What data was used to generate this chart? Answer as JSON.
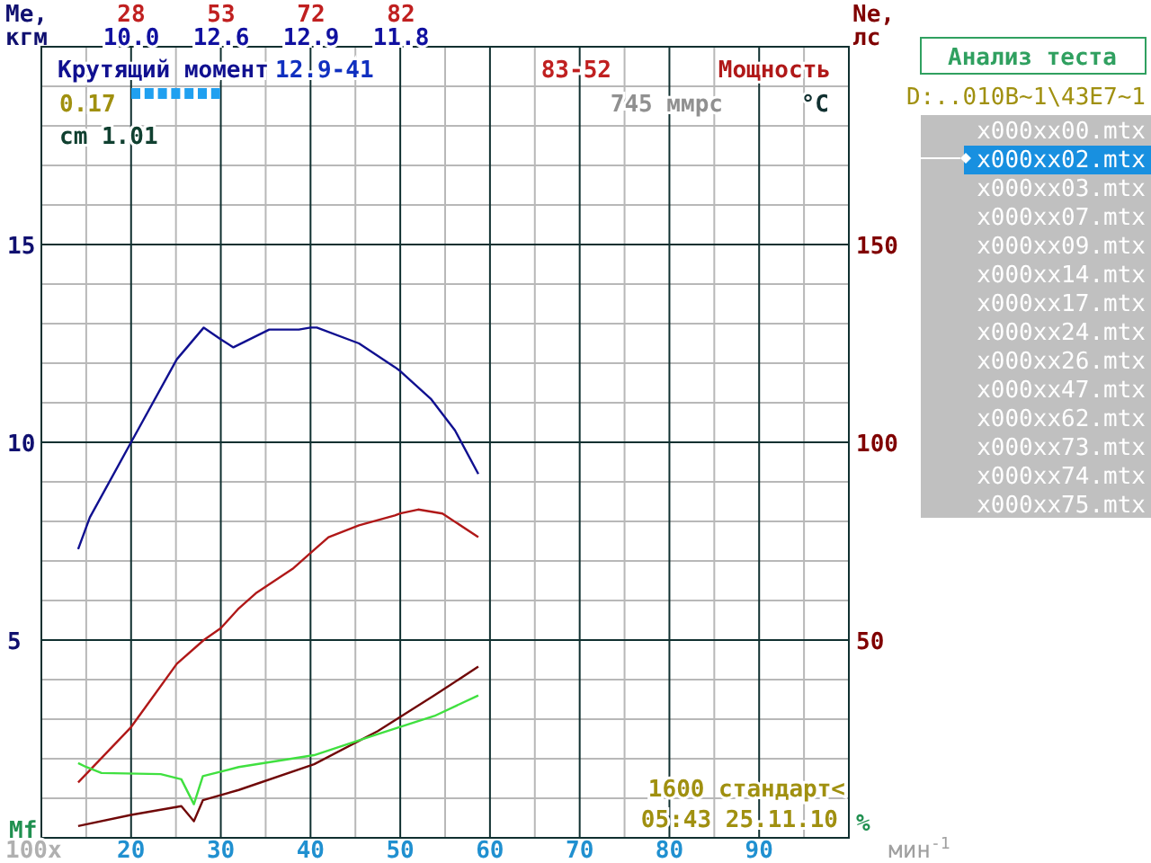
{
  "chart_data": [
    {
      "type": "line",
      "ylabel": "Ме, кгм",
      "y2label": "Ne, лс",
      "xlabel": "мин$^{-1}$",
      "xlim": [
        10,
        100
      ],
      "xticks": [
        20,
        30,
        40,
        50,
        60,
        70,
        80,
        90
      ],
      "ylim": [
        0,
        20
      ],
      "yticks": [
        5,
        10,
        15
      ],
      "y2lim": [
        0,
        200
      ],
      "y2ticks": [
        50,
        100,
        150
      ],
      "grid": true,
      "legend": "top",
      "series": [
        {
          "name": "Крутящий момент",
          "color": "#101090",
          "x": [
            14.1,
            15.4,
            20,
            25.1,
            28.1,
            30,
            31.4,
            35.4,
            38.7,
            40,
            40.7,
            45.4,
            49.4,
            50,
            53.4,
            56.1,
            58.7
          ],
          "values": [
            7.3,
            8.1,
            10.0,
            12.1,
            12.9,
            12.6,
            12.4,
            12.85,
            12.85,
            12.9,
            12.9,
            12.5,
            11.9,
            11.8,
            11.1,
            10.3,
            9.2
          ]
        },
        {
          "name": "Мощность",
          "color": "#b01818",
          "axis": "y2",
          "x": [
            14.1,
            20,
            25.1,
            28.1,
            30,
            32,
            34,
            38,
            40,
            42,
            45.4,
            49.4,
            50,
            52,
            54.7,
            58.7
          ],
          "values": [
            14,
            28,
            44,
            50,
            53,
            58,
            62,
            68,
            72,
            76,
            79,
            81.5,
            82,
            83,
            82,
            76
          ]
        },
        {
          "color": "#700808",
          "x": [
            14.1,
            20,
            25.6,
            27,
            28,
            32,
            40.4,
            47.5,
            53.8,
            58.7
          ],
          "values": [
            0.3,
            0.58,
            0.8,
            0.42,
            0.95,
            1.21,
            1.86,
            2.7,
            3.6,
            4.33
          ]
        },
        {
          "color": "#40e040",
          "x": [
            14.1,
            15,
            16.7,
            23.3,
            25.6,
            27,
            28,
            32,
            40.4,
            47.5,
            53.8,
            58.7
          ],
          "values": [
            1.89,
            1.79,
            1.64,
            1.61,
            1.48,
            0.85,
            1.56,
            1.79,
            2.09,
            2.62,
            3.08,
            3.6
          ]
        }
      ],
      "annotations": [
        "12.9-41",
        "83-52",
        "0.17",
        "cm 1.01",
        "745 ммрс",
        "°C",
        "Mf",
        "100x",
        "%",
        "1600 стандарт<",
        "05:43 25.11.10",
        "28",
        "53",
        "72",
        "82",
        "10.0",
        "12.6",
        "12.9",
        "11.8"
      ]
    },
    {
      "type": "other",
      "title": "Анализ теста",
      "subtitle": "D:..010B~1\\43E7~1",
      "categories": [
        "x000xx00.mtx",
        "x000xx02.mtx",
        "x000xx03.mtx",
        "x000xx07.mtx",
        "x000xx09.mtx",
        "x000xx14.mtx",
        "x000xx17.mtx",
        "x000xx24.mtx",
        "x000xx26.mtx",
        "x000xx47.mtx",
        "x000xx62.mtx",
        "x000xx73.mtx",
        "x000xx74.mtx",
        "x000xx75.mtx"
      ]
    }
  ]
}
